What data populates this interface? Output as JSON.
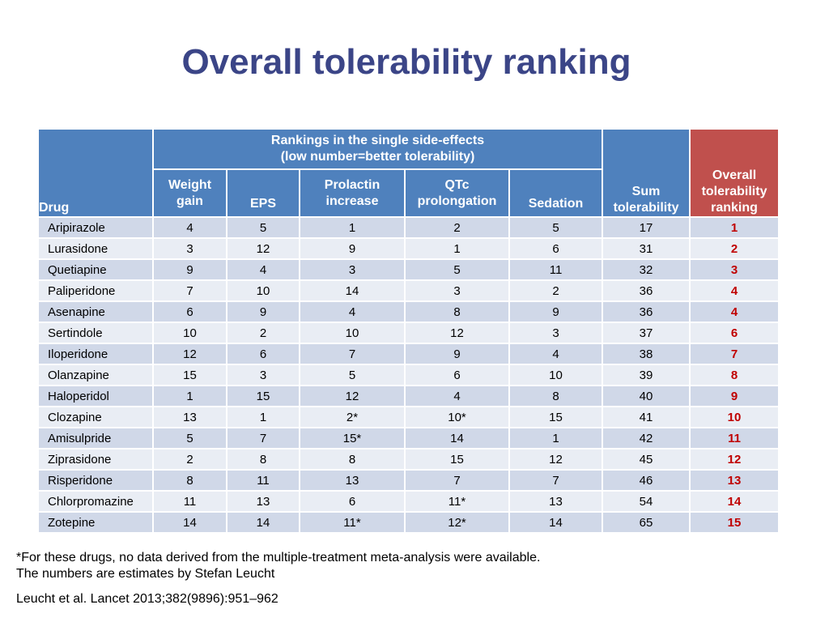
{
  "title": "Overall tolerability ranking",
  "table": {
    "header": {
      "drug": "Drug",
      "group_line1": "Rankings in the single side-effects",
      "group_line2": "(low number=better tolerability)",
      "weight_gain": [
        "Weight",
        "gain"
      ],
      "eps": "EPS",
      "prolactin": [
        "Prolactin",
        "increase"
      ],
      "qtc": [
        "QTc",
        "prolongation"
      ],
      "sedation": "Sedation",
      "sum": [
        "Sum",
        "tolerability"
      ],
      "overall": [
        "Overall",
        "tolerability",
        "ranking"
      ]
    },
    "rows": [
      {
        "drug": "Aripirazole",
        "weight": "4",
        "eps": "5",
        "prolactin": "1",
        "qtc": "2",
        "sedation": "5",
        "sum": "17",
        "overall": "1"
      },
      {
        "drug": "Lurasidone",
        "weight": "3",
        "eps": "12",
        "prolactin": "9",
        "qtc": "1",
        "sedation": "6",
        "sum": "31",
        "overall": "2"
      },
      {
        "drug": "Quetiapine",
        "weight": "9",
        "eps": "4",
        "prolactin": "3",
        "qtc": "5",
        "sedation": "11",
        "sum": "32",
        "overall": "3"
      },
      {
        "drug": "Paliperidone",
        "weight": "7",
        "eps": "10",
        "prolactin": "14",
        "qtc": "3",
        "sedation": "2",
        "sum": "36",
        "overall": "4"
      },
      {
        "drug": "Asenapine",
        "weight": "6",
        "eps": "9",
        "prolactin": "4",
        "qtc": "8",
        "sedation": "9",
        "sum": "36",
        "overall": "4"
      },
      {
        "drug": "Sertindole",
        "weight": "10",
        "eps": "2",
        "prolactin": "10",
        "qtc": "12",
        "sedation": "3",
        "sum": "37",
        "overall": "6"
      },
      {
        "drug": "Iloperidone",
        "weight": "12",
        "eps": "6",
        "prolactin": "7",
        "qtc": "9",
        "sedation": "4",
        "sum": "38",
        "overall": "7"
      },
      {
        "drug": "Olanzapine",
        "weight": "15",
        "eps": "3",
        "prolactin": "5",
        "qtc": "6",
        "sedation": "10",
        "sum": "39",
        "overall": "8"
      },
      {
        "drug": "Haloperidol",
        "weight": "1",
        "eps": "15",
        "prolactin": "12",
        "qtc": "4",
        "sedation": "8",
        "sum": "40",
        "overall": "9"
      },
      {
        "drug": "Clozapine",
        "weight": "13",
        "eps": "1",
        "prolactin": "2*",
        "qtc": "10*",
        "sedation": "15",
        "sum": "41",
        "overall": "10"
      },
      {
        "drug": "Amisulpride",
        "weight": "5",
        "eps": "7",
        "prolactin": "15*",
        "qtc": "14",
        "sedation": "1",
        "sum": "42",
        "overall": "11"
      },
      {
        "drug": "Ziprasidone",
        "weight": "2",
        "eps": "8",
        "prolactin": "8",
        "qtc": "15",
        "sedation": "12",
        "sum": "45",
        "overall": "12"
      },
      {
        "drug": "Risperidone",
        "weight": "8",
        "eps": "11",
        "prolactin": "13",
        "qtc": "7",
        "sedation": "7",
        "sum": "46",
        "overall": "13"
      },
      {
        "drug": "Chlorpromazine",
        "weight": "11",
        "eps": "13",
        "prolactin": "6",
        "qtc": "11*",
        "sedation": "13",
        "sum": "54",
        "overall": "14"
      },
      {
        "drug": "Zotepine",
        "weight": "14",
        "eps": "14",
        "prolactin": "11*",
        "qtc": "12*",
        "sedation": "14",
        "sum": "65",
        "overall": "15"
      }
    ]
  },
  "footnote_line1": "*For these drugs, no data derived from the multiple-treatment meta-analysis were available.",
  "footnote_line2": "The numbers are estimates by Stefan Leucht",
  "citation": "Leucht et al. Lancet 2013;382(9896):951–962",
  "colors": {
    "title": "#3b4587",
    "header_blue": "#4f81bd",
    "header_red": "#c0504d",
    "row_odd": "#d0d8e8",
    "row_even": "#e9edf4",
    "overall_text": "#c00000"
  }
}
